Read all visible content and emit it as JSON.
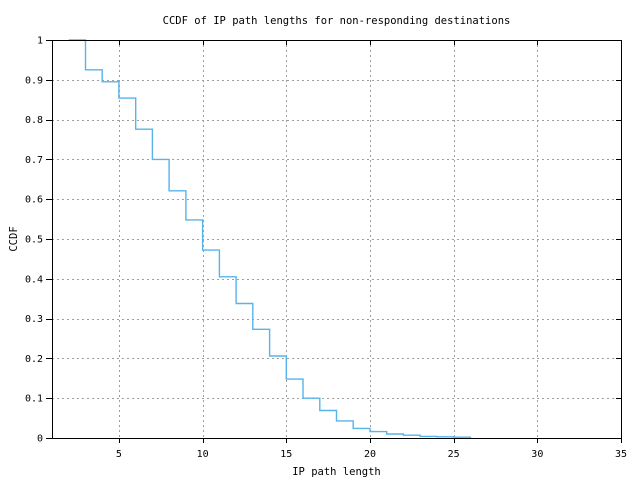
{
  "colors": {
    "background": "#ffffff",
    "axis": "#000000",
    "grid": "#9e9e9e",
    "text": "#000000",
    "series": "#56b4e9"
  },
  "chart_data": {
    "type": "line",
    "subtype": "step-ccdf",
    "title": "CCDF of IP path lengths for non-responding destinations",
    "xlabel": "IP path length",
    "ylabel": "CCDF",
    "xlim": [
      1,
      35
    ],
    "ylim": [
      0,
      1
    ],
    "xticks": [
      5,
      10,
      15,
      20,
      25,
      30,
      35
    ],
    "xtick_labels": [
      "5",
      "10",
      "15",
      "20",
      "25",
      "30",
      "35"
    ],
    "yticks": [
      0,
      0.1,
      0.2,
      0.3,
      0.4,
      0.5,
      0.6,
      0.7,
      0.8,
      0.9,
      1
    ],
    "ytick_labels": [
      "0",
      "0.1",
      "0.2",
      "0.3",
      "0.4",
      "0.5",
      "0.6",
      "0.7",
      "0.8",
      "0.9",
      "1"
    ],
    "grid": true,
    "grid_style": "dashed",
    "legend": "none",
    "series": [
      {
        "name": "ccdf-of-ip-path-length",
        "color": "#56b4e9",
        "steps": [
          [
            2,
            1.0
          ],
          [
            3,
            0.925
          ],
          [
            4,
            0.895
          ],
          [
            5,
            0.854
          ],
          [
            6,
            0.776
          ],
          [
            7,
            0.7
          ],
          [
            8,
            0.621
          ],
          [
            9,
            0.548
          ],
          [
            10,
            0.472
          ],
          [
            11,
            0.405
          ],
          [
            12,
            0.338
          ],
          [
            13,
            0.273
          ],
          [
            14,
            0.206
          ],
          [
            15,
            0.148
          ],
          [
            16,
            0.1
          ],
          [
            17,
            0.069
          ],
          [
            18,
            0.043
          ],
          [
            19,
            0.024
          ],
          [
            20,
            0.016
          ],
          [
            21,
            0.01
          ],
          [
            22,
            0.007
          ],
          [
            23,
            0.004
          ],
          [
            24,
            0.003
          ],
          [
            25,
            0.002
          ],
          [
            26,
            0.0
          ]
        ]
      }
    ]
  }
}
